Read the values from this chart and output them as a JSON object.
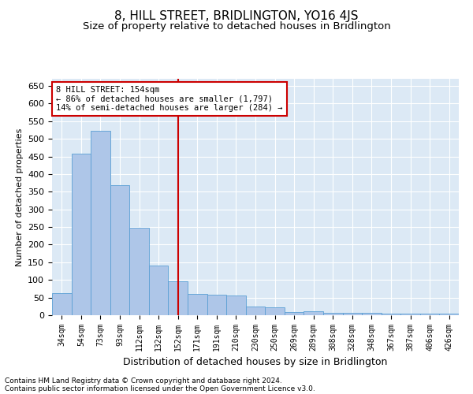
{
  "title": "8, HILL STREET, BRIDLINGTON, YO16 4JS",
  "subtitle": "Size of property relative to detached houses in Bridlington",
  "xlabel": "Distribution of detached houses by size in Bridlington",
  "ylabel": "Number of detached properties",
  "footnote1": "Contains HM Land Registry data © Crown copyright and database right 2024.",
  "footnote2": "Contains public sector information licensed under the Open Government Licence v3.0.",
  "categories": [
    "34sqm",
    "54sqm",
    "73sqm",
    "93sqm",
    "112sqm",
    "132sqm",
    "152sqm",
    "171sqm",
    "191sqm",
    "210sqm",
    "230sqm",
    "250sqm",
    "269sqm",
    "289sqm",
    "308sqm",
    "328sqm",
    "348sqm",
    "367sqm",
    "387sqm",
    "406sqm",
    "426sqm"
  ],
  "values": [
    62,
    457,
    522,
    368,
    248,
    140,
    95,
    60,
    57,
    55,
    24,
    22,
    10,
    12,
    7,
    6,
    6,
    4,
    4,
    5,
    4
  ],
  "bar_color": "#aec6e8",
  "bar_edge_color": "#5a9fd4",
  "background_color": "#dce9f5",
  "grid_color": "#ffffff",
  "property_label": "8 HILL STREET: 154sqm",
  "annotation_line1": "← 86% of detached houses are smaller (1,797)",
  "annotation_line2": "14% of semi-detached houses are larger (284) →",
  "vline_position": 6.0,
  "ylim": [
    0,
    670
  ],
  "yticks": [
    0,
    50,
    100,
    150,
    200,
    250,
    300,
    350,
    400,
    450,
    500,
    550,
    600,
    650
  ],
  "title_fontsize": 11,
  "subtitle_fontsize": 9.5,
  "xlabel_fontsize": 9,
  "ylabel_fontsize": 8,
  "annotation_box_color": "#ffffff",
  "annotation_box_edge": "#cc0000",
  "vline_color": "#cc0000",
  "footnote_fontsize": 6.5
}
